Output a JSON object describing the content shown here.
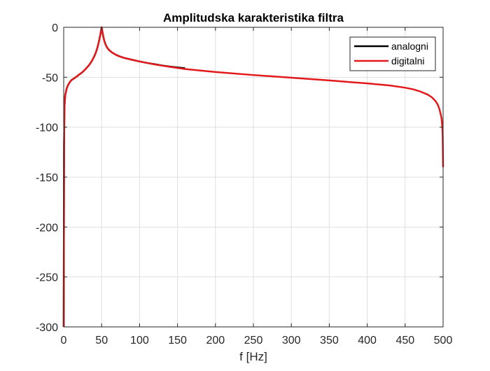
{
  "chart_data": {
    "type": "line",
    "title": "Amplitudska karakteristika filtra",
    "xlabel": "f [Hz]",
    "ylabel": "",
    "xlim": [
      0,
      500
    ],
    "ylim": [
      -300,
      0
    ],
    "xticks": [
      0,
      50,
      100,
      150,
      200,
      250,
      300,
      350,
      400,
      450,
      500
    ],
    "yticks": [
      0,
      -50,
      -100,
      -150,
      -200,
      -250,
      -300
    ],
    "grid": true,
    "legend_position": "top-right",
    "series": [
      {
        "name": "analogni",
        "color": "#000000",
        "x": [
          0,
          0.5,
          1,
          2,
          4,
          6,
          8,
          10,
          12,
          15,
          18,
          20,
          22,
          25,
          28,
          30,
          33,
          35,
          38,
          40,
          42,
          44,
          45,
          46,
          47,
          48,
          49,
          49.5,
          50,
          50.5,
          51,
          52,
          53,
          54,
          55,
          56,
          58,
          60,
          63,
          65,
          68,
          70,
          75,
          80,
          90,
          100,
          110,
          120,
          130,
          140,
          150,
          160
        ],
        "y": [
          -300,
          -120,
          -80,
          -68,
          -61,
          -57.5,
          -55,
          -53,
          -52,
          -50.5,
          -48.8,
          -47.5,
          -46.5,
          -44.7,
          -42.5,
          -40.8,
          -38.3,
          -36.2,
          -32.5,
          -29.5,
          -26,
          -21.5,
          -18.7,
          -15.5,
          -12.2,
          -8.5,
          -4.5,
          -2.2,
          0,
          -2.2,
          -4.5,
          -8.5,
          -12,
          -14.8,
          -16.8,
          -18.6,
          -21.1,
          -22.9,
          -24.8,
          -25.9,
          -27.1,
          -28,
          -29.5,
          -30.7,
          -32.5,
          -34.2,
          -35.7,
          -37,
          -38.3,
          -39.3,
          -40.2,
          -41
        ]
      },
      {
        "name": "digitalni",
        "color": "#e31a1c",
        "x": [
          0,
          0.5,
          1,
          2,
          4,
          6,
          8,
          10,
          12,
          15,
          18,
          20,
          22,
          25,
          28,
          30,
          33,
          35,
          38,
          40,
          42,
          44,
          45,
          46,
          47,
          48,
          49,
          49.5,
          50,
          50.5,
          51,
          52,
          53,
          54,
          55,
          56,
          58,
          60,
          63,
          65,
          68,
          70,
          75,
          80,
          90,
          100,
          120,
          140,
          160,
          200,
          250,
          300,
          350,
          400,
          430,
          450,
          460,
          470,
          480,
          485,
          490,
          493,
          495,
          497,
          498,
          499,
          499.5,
          500
        ],
        "y": [
          -300,
          -120,
          -80,
          -68,
          -61,
          -57.5,
          -55,
          -53,
          -52,
          -50.5,
          -48.8,
          -47.5,
          -46.5,
          -44.7,
          -42.5,
          -40.8,
          -38.3,
          -36.2,
          -32.5,
          -29.5,
          -26,
          -21.5,
          -18.7,
          -15.5,
          -12.2,
          -8.5,
          -4.5,
          -2.2,
          0,
          -2.2,
          -4.5,
          -8.5,
          -12,
          -14.8,
          -16.8,
          -18.6,
          -21.1,
          -22.9,
          -24.8,
          -25.9,
          -27.1,
          -28,
          -29.5,
          -30.7,
          -32.5,
          -34.2,
          -37.2,
          -39.6,
          -41.8,
          -44.8,
          -47.8,
          -50.5,
          -53.2,
          -56.2,
          -58.3,
          -60.5,
          -62,
          -64.3,
          -67.5,
          -70,
          -73.8,
          -77.5,
          -81.5,
          -87.5,
          -91.5,
          -100,
          -110,
          -140
        ]
      }
    ]
  }
}
